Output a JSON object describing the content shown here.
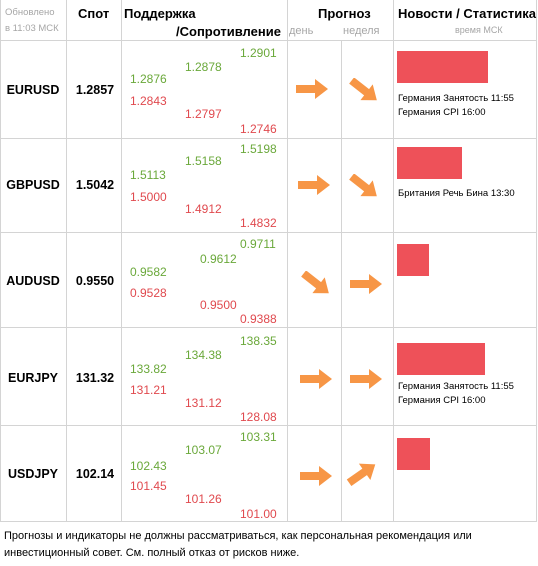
{
  "header": {
    "updated_line1": "Обновлено",
    "updated_line2": "в 11:03 МСК",
    "spot": "Спот",
    "support": "Поддержка",
    "resistance": "/Сопротивление",
    "forecast": "Прогноз",
    "day": "день",
    "week": "неделя",
    "news": "Новости / Статистика",
    "time_msk": "время МСК"
  },
  "rows": [
    {
      "pair": "EURUSD",
      "spot": "1.2857",
      "s1": "1.2876",
      "s2": "1.2843",
      "m1": "1.2878",
      "m2": "1.2797",
      "h1": "1.2901",
      "h2": "1.2746",
      "forecast_day": "right",
      "forecast_week": "down-right",
      "news": [
        "Германия Занятость 11:55",
        "Германия CPI 16:00"
      ]
    },
    {
      "pair": "GBPUSD",
      "spot": "1.5042",
      "s1": "1.5113",
      "s2": "1.5000",
      "m1": "1.5158",
      "m2": "1.4912",
      "h1": "1.5198",
      "h2": "1.4832",
      "forecast_day": "right",
      "forecast_week": "down-right",
      "news": [
        "Британия Речь Бина 13:30"
      ]
    },
    {
      "pair": "AUDUSD",
      "spot": "0.9550",
      "s1": "0.9582",
      "s2": "0.9528",
      "m1": "0.9612",
      "m2": "0.9500",
      "h1": "0.9711",
      "h2": "0.9388",
      "forecast_day": "down-right",
      "forecast_week": "right",
      "news": []
    },
    {
      "pair": "EURJPY",
      "spot": "131.32",
      "s1": "133.82",
      "s2": "131.21",
      "m1": "134.38",
      "m2": "131.12",
      "h1": "138.35",
      "h2": "128.08",
      "forecast_day": "right",
      "forecast_week": "right",
      "news": [
        "Германия Занятость 11:55",
        "Германия CPI 16:00"
      ]
    },
    {
      "pair": "USDJPY",
      "spot": "102.14",
      "s1": "102.43",
      "s2": "101.45",
      "m1": "103.07",
      "m2": "101.26",
      "h1": "103.31",
      "h2": "101.00",
      "forecast_day": "right",
      "forecast_week": "up-right",
      "news": []
    }
  ],
  "disclaimer": "Прогнозы и индикаторы не должны рассматриваться, как персональная рекомендация или инвестиционный совет. См. полный отказ от рисков ниже.",
  "colors": {
    "support": "#6aa83a",
    "resistance": "#e0494e",
    "news_bar": "#ee5159",
    "arrow": "#f79646"
  }
}
